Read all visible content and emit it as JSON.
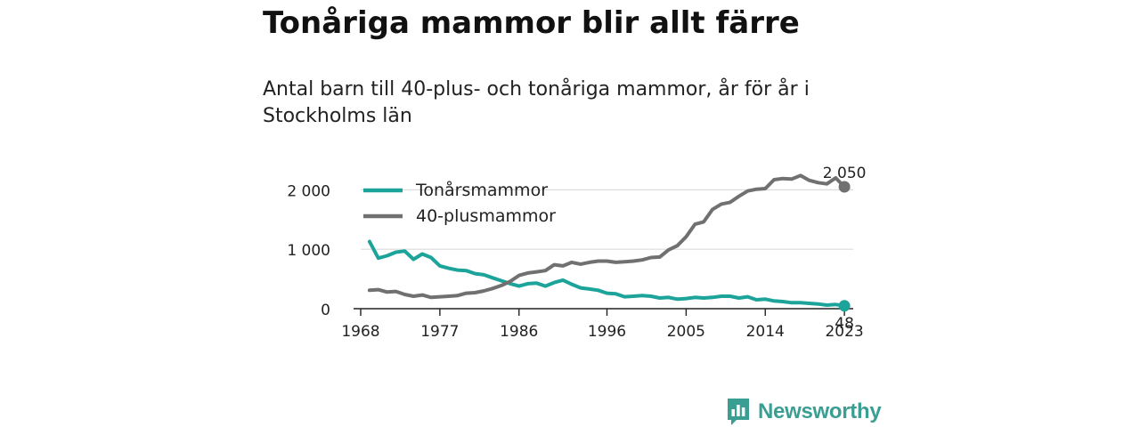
{
  "title": "Tonåriga mammor blir allt färre",
  "subtitle": "Antal barn till 40-plus- och tonåriga mammor, år för år i Stockholms län",
  "brand": {
    "name": "Newsworthy",
    "color": "#3a9e92",
    "icon": "newsworthy-logo-icon"
  },
  "chart_data": {
    "type": "line",
    "xlim": [
      1968,
      2024
    ],
    "ylim": [
      0,
      2200
    ],
    "x_ticks": [
      1968,
      1977,
      1986,
      1996,
      2005,
      2014,
      2023
    ],
    "x_tick_labels": [
      "1968",
      "1977",
      "1986",
      "1996",
      "2005",
      "2014",
      "2023"
    ],
    "y_ticks": [
      0,
      1000,
      2000
    ],
    "y_tick_labels": [
      "0",
      "1 000",
      "2 000"
    ],
    "grid": true,
    "legend": "top-left",
    "x": [
      1969,
      1970,
      1971,
      1972,
      1973,
      1974,
      1975,
      1976,
      1977,
      1978,
      1979,
      1980,
      1981,
      1982,
      1983,
      1984,
      1985,
      1986,
      1987,
      1988,
      1989,
      1990,
      1991,
      1992,
      1993,
      1994,
      1995,
      1996,
      1997,
      1998,
      1999,
      2000,
      2001,
      2002,
      2003,
      2004,
      2005,
      2006,
      2007,
      2008,
      2009,
      2010,
      2011,
      2012,
      2013,
      2014,
      2015,
      2016,
      2017,
      2018,
      2019,
      2020,
      2021,
      2022,
      2023
    ],
    "series": [
      {
        "name": "Tonårsmammor",
        "color": "#1ca39a",
        "values": [
          1130,
          850,
          890,
          950,
          970,
          830,
          920,
          860,
          720,
          680,
          650,
          640,
          590,
          570,
          520,
          470,
          420,
          380,
          420,
          430,
          380,
          440,
          480,
          410,
          350,
          330,
          310,
          260,
          250,
          200,
          210,
          220,
          210,
          180,
          190,
          160,
          170,
          190,
          180,
          190,
          210,
          210,
          180,
          200,
          150,
          160,
          130,
          120,
          100,
          100,
          90,
          80,
          60,
          70,
          48
        ]
      },
      {
        "name": "40-plusmammor",
        "color": "#707070",
        "values": [
          310,
          320,
          280,
          290,
          240,
          210,
          230,
          190,
          200,
          210,
          220,
          260,
          270,
          300,
          340,
          390,
          460,
          560,
          600,
          620,
          640,
          740,
          720,
          780,
          750,
          780,
          800,
          800,
          780,
          790,
          800,
          820,
          860,
          870,
          990,
          1060,
          1210,
          1420,
          1460,
          1670,
          1760,
          1790,
          1890,
          1980,
          2010,
          2020,
          2170,
          2190,
          2180,
          2240,
          2160,
          2120,
          2100,
          2200,
          2050
        ]
      }
    ],
    "end_labels": [
      {
        "series": "40-plusmammor",
        "text": "2 050"
      },
      {
        "series": "Tonårsmammor",
        "text": "48"
      }
    ]
  }
}
